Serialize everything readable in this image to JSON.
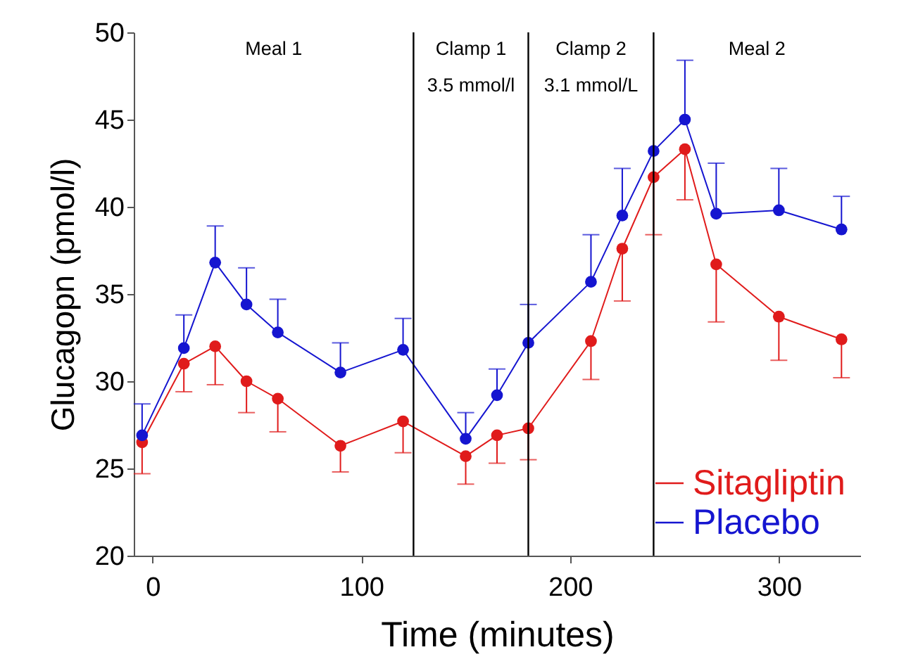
{
  "chart_data": {
    "type": "line",
    "xlabel": "Time (minutes)",
    "ylabel": "Glucagopn (pmol/l)",
    "x": [
      -5,
      15,
      30,
      45,
      60,
      90,
      120,
      150,
      165,
      180,
      210,
      225,
      240,
      255,
      270,
      300,
      330
    ],
    "series": [
      {
        "name": "Sitagliptin",
        "color": "#e01b1b",
        "values": [
          26.5,
          31.0,
          32.0,
          30.0,
          29.0,
          26.3,
          27.7,
          25.7,
          26.9,
          27.3,
          32.3,
          37.6,
          41.7,
          43.3,
          36.7,
          33.7,
          32.4
        ],
        "errors": [
          [
            24.7,
            26.5
          ],
          [
            29.4,
            31.0
          ],
          [
            29.8,
            32.0
          ],
          [
            28.2,
            30.0
          ],
          [
            27.1,
            29.0
          ],
          [
            24.8,
            26.3
          ],
          [
            25.9,
            27.7
          ],
          [
            24.1,
            25.7
          ],
          [
            25.3,
            26.9
          ],
          [
            25.5,
            27.3
          ],
          [
            30.1,
            32.3
          ],
          [
            34.6,
            37.6
          ],
          [
            38.4,
            41.7
          ],
          [
            40.4,
            43.3
          ],
          [
            33.4,
            36.7
          ],
          [
            31.2,
            33.7
          ],
          [
            30.2,
            32.4
          ]
        ]
      },
      {
        "name": "Placebo",
        "color": "#1515d0",
        "values": [
          26.9,
          31.9,
          36.8,
          34.4,
          32.8,
          30.5,
          31.8,
          26.7,
          29.2,
          32.2,
          35.7,
          39.5,
          43.2,
          45.0,
          39.6,
          39.8,
          38.7
        ],
        "errors": [
          [
            26.9,
            28.7
          ],
          [
            31.9,
            33.8
          ],
          [
            36.8,
            38.9
          ],
          [
            34.4,
            36.5
          ],
          [
            32.8,
            34.7
          ],
          [
            30.5,
            32.2
          ],
          [
            31.8,
            33.6
          ],
          [
            26.7,
            28.2
          ],
          [
            29.2,
            30.7
          ],
          [
            32.2,
            34.4
          ],
          [
            35.7,
            38.4
          ],
          [
            39.5,
            42.2
          ],
          null,
          [
            45.0,
            48.4
          ],
          [
            39.6,
            42.5
          ],
          [
            39.8,
            42.2
          ],
          [
            38.7,
            40.6
          ]
        ]
      }
    ],
    "xlim": [
      -9,
      339
    ],
    "xticks": [
      0,
      100,
      200,
      300
    ],
    "ylim": [
      20,
      50
    ],
    "yticks": [
      20,
      25,
      30,
      35,
      40,
      45,
      50
    ],
    "ref_lines": [
      {
        "axis": "x",
        "value": 125,
        "color": "#000000"
      },
      {
        "axis": "x",
        "value": 180,
        "color": "#000000"
      },
      {
        "axis": "x",
        "value": 240,
        "color": "#000000"
      }
    ],
    "annotations": [
      "Meal 1",
      "Clamp 1",
      "3.5 mmol/l",
      "Clamp 2",
      "3.1 mmol/L",
      "Meal 2"
    ],
    "marker": "circle",
    "grid": false,
    "legend": "bottom right"
  }
}
